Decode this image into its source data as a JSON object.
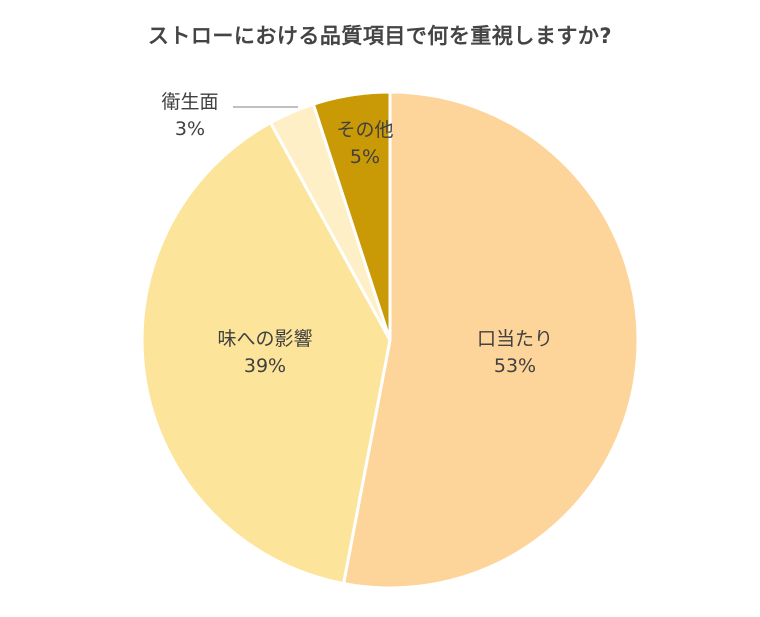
{
  "chart_data": {
    "type": "pie",
    "title": "ストローにおける品質項目で何を重視しますか?",
    "categories": [
      "口当たり",
      "味への影響",
      "衛生面",
      "その他"
    ],
    "values": [
      53,
      39,
      3,
      5
    ],
    "value_labels": [
      "53%",
      "39%",
      "3%",
      "5%"
    ],
    "colors": [
      "#FDD59B",
      "#FDE49B",
      "#FEEFC7",
      "#C99A06"
    ],
    "start_angle": "12 o'clock, clockwise",
    "legend": "none (data labels on slices)"
  },
  "labels": {
    "kuchiatari": {
      "name": "口当たり",
      "pct": "53%"
    },
    "aji": {
      "name": "味への影響",
      "pct": "39%"
    },
    "eisei": {
      "name": "衛生面",
      "pct": "3%"
    },
    "sonota": {
      "name": "その他",
      "pct": "5%"
    }
  }
}
